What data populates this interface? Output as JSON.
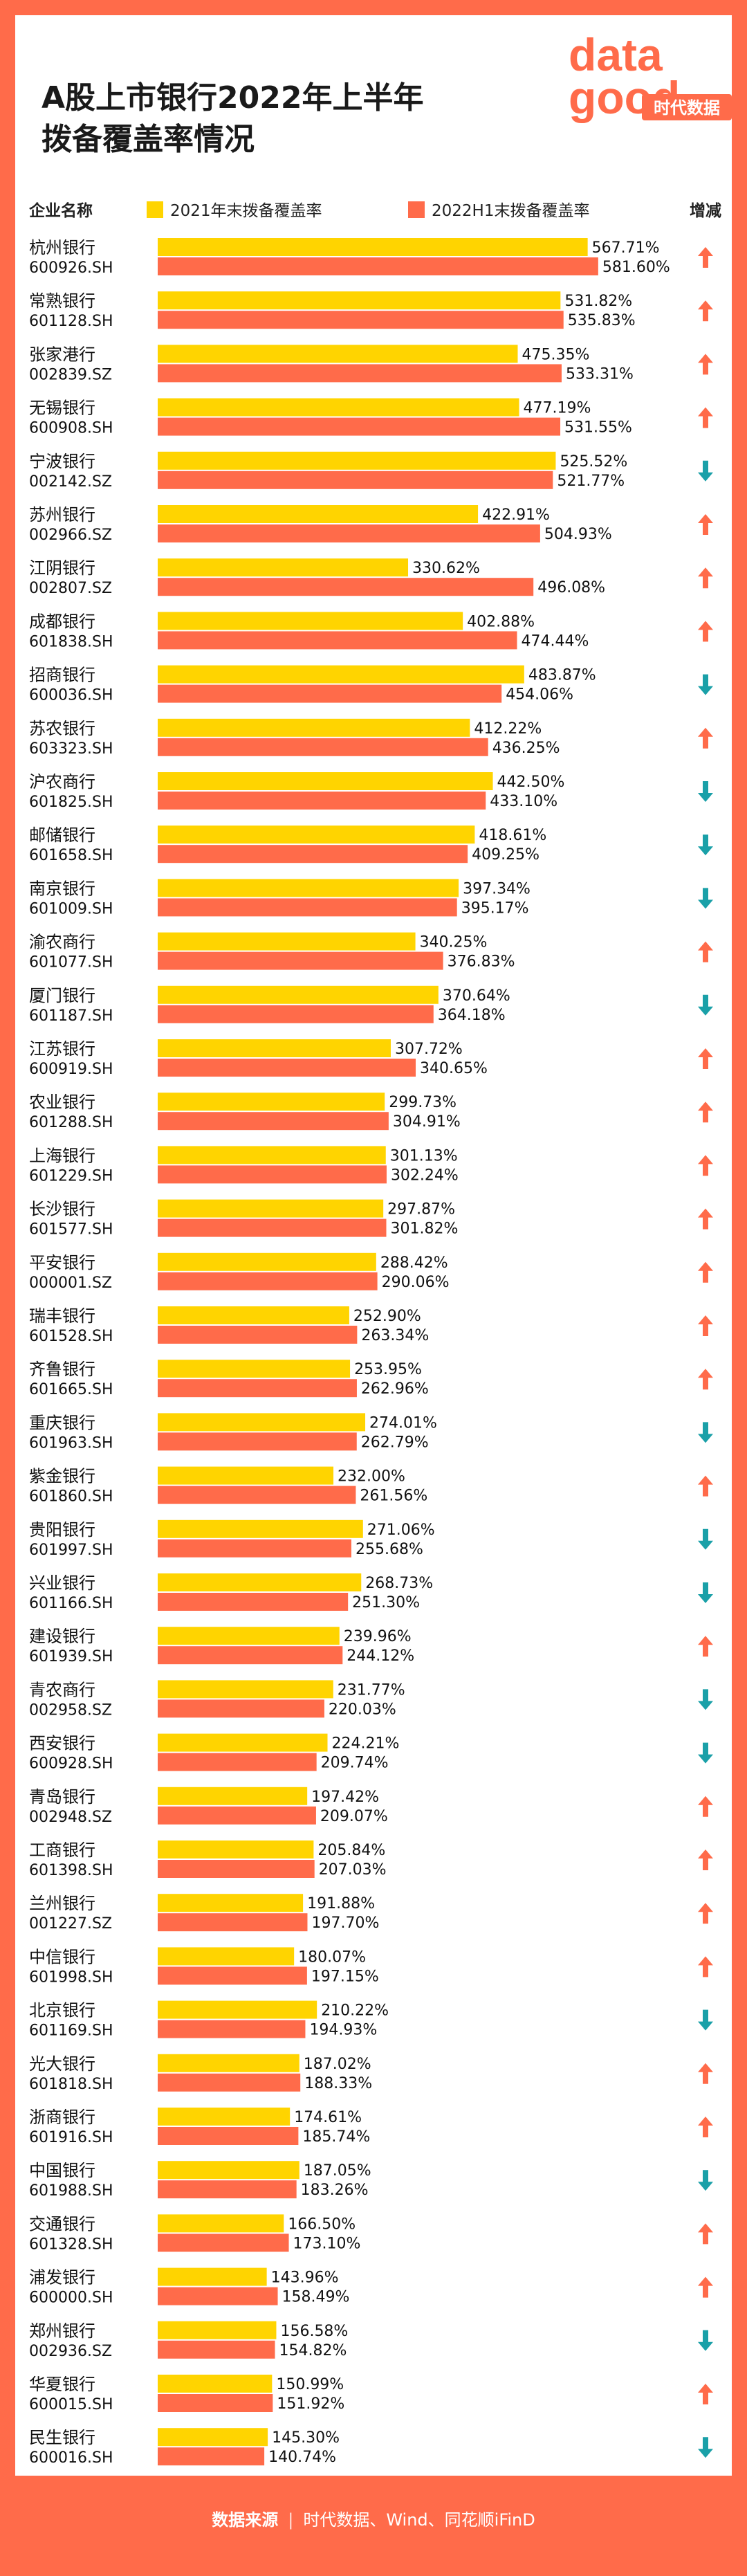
{
  "title": [
    "A股上市银行2022年上半年",
    "拨备覆盖率情况"
  ],
  "logo": {
    "top": "data",
    "bottom": "good",
    "tag": "时代数据"
  },
  "footer": {
    "label": "数据来源",
    "sources": "时代数据、Wind、同花顺iFinD"
  },
  "colors": {
    "y2021": "#ffd400",
    "y2022": "#ff6b4a",
    "up": "#ff6b4a",
    "down": "#1aa0a8",
    "background": "#ff6b4a"
  },
  "chart_data": {
    "type": "bar",
    "orientation": "horizontal",
    "headers": {
      "company": "企业名称",
      "change": "增减"
    },
    "series": [
      {
        "name": "2021年末拨备覆盖率",
        "key": "y2021",
        "color": "#ffd400"
      },
      {
        "name": "2022H1末拨备覆盖率",
        "key": "y2022",
        "color": "#ff6b4a"
      }
    ],
    "value_suffix": "%",
    "xlim": [
      0,
      600
    ],
    "rows": [
      {
        "name": "杭州银行",
        "code": "600926.SH",
        "y2021": 567.71,
        "y2022": 581.6,
        "trend": "up"
      },
      {
        "name": "常熟银行",
        "code": "601128.SH",
        "y2021": 531.82,
        "y2022": 535.83,
        "trend": "up"
      },
      {
        "name": "张家港行",
        "code": "002839.SZ",
        "y2021": 475.35,
        "y2022": 533.31,
        "trend": "up"
      },
      {
        "name": "无锡银行",
        "code": "600908.SH",
        "y2021": 477.19,
        "y2022": 531.55,
        "trend": "up"
      },
      {
        "name": "宁波银行",
        "code": "002142.SZ",
        "y2021": 525.52,
        "y2022": 521.77,
        "trend": "down"
      },
      {
        "name": "苏州银行",
        "code": "002966.SZ",
        "y2021": 422.91,
        "y2022": 504.93,
        "trend": "up"
      },
      {
        "name": "江阴银行",
        "code": "002807.SZ",
        "y2021": 330.62,
        "y2022": 496.08,
        "trend": "up"
      },
      {
        "name": "成都银行",
        "code": "601838.SH",
        "y2021": 402.88,
        "y2022": 474.44,
        "trend": "up"
      },
      {
        "name": "招商银行",
        "code": "600036.SH",
        "y2021": 483.87,
        "y2022": 454.06,
        "trend": "down"
      },
      {
        "name": "苏农银行",
        "code": "603323.SH",
        "y2021": 412.22,
        "y2022": 436.25,
        "trend": "up"
      },
      {
        "name": "沪农商行",
        "code": "601825.SH",
        "y2021": 442.5,
        "y2022": 433.1,
        "trend": "down"
      },
      {
        "name": "邮储银行",
        "code": "601658.SH",
        "y2021": 418.61,
        "y2022": 409.25,
        "trend": "down"
      },
      {
        "name": "南京银行",
        "code": "601009.SH",
        "y2021": 397.34,
        "y2022": 395.17,
        "trend": "down"
      },
      {
        "name": "渝农商行",
        "code": "601077.SH",
        "y2021": 340.25,
        "y2022": 376.83,
        "trend": "up"
      },
      {
        "name": "厦门银行",
        "code": "601187.SH",
        "y2021": 370.64,
        "y2022": 364.18,
        "trend": "down"
      },
      {
        "name": "江苏银行",
        "code": "600919.SH",
        "y2021": 307.72,
        "y2022": 340.65,
        "trend": "up"
      },
      {
        "name": "农业银行",
        "code": "601288.SH",
        "y2021": 299.73,
        "y2022": 304.91,
        "trend": "up"
      },
      {
        "name": "上海银行",
        "code": "601229.SH",
        "y2021": 301.13,
        "y2022": 302.24,
        "trend": "up"
      },
      {
        "name": "长沙银行",
        "code": "601577.SH",
        "y2021": 297.87,
        "y2022": 301.82,
        "trend": "up"
      },
      {
        "name": "平安银行",
        "code": "000001.SZ",
        "y2021": 288.42,
        "y2022": 290.06,
        "trend": "up"
      },
      {
        "name": "瑞丰银行",
        "code": "601528.SH",
        "y2021": 252.9,
        "y2022": 263.34,
        "trend": "up"
      },
      {
        "name": "齐鲁银行",
        "code": "601665.SH",
        "y2021": 253.95,
        "y2022": 262.96,
        "trend": "up"
      },
      {
        "name": "重庆银行",
        "code": "601963.SH",
        "y2021": 274.01,
        "y2022": 262.79,
        "trend": "down"
      },
      {
        "name": "紫金银行",
        "code": "601860.SH",
        "y2021": 232.0,
        "y2022": 261.56,
        "trend": "up"
      },
      {
        "name": "贵阳银行",
        "code": "601997.SH",
        "y2021": 271.06,
        "y2022": 255.68,
        "trend": "down"
      },
      {
        "name": "兴业银行",
        "code": "601166.SH",
        "y2021": 268.73,
        "y2022": 251.3,
        "trend": "down"
      },
      {
        "name": "建设银行",
        "code": "601939.SH",
        "y2021": 239.96,
        "y2022": 244.12,
        "trend": "up"
      },
      {
        "name": "青农商行",
        "code": "002958.SZ",
        "y2021": 231.77,
        "y2022": 220.03,
        "trend": "down"
      },
      {
        "name": "西安银行",
        "code": "600928.SH",
        "y2021": 224.21,
        "y2022": 209.74,
        "trend": "down"
      },
      {
        "name": "青岛银行",
        "code": "002948.SZ",
        "y2021": 197.42,
        "y2022": 209.07,
        "trend": "up"
      },
      {
        "name": "工商银行",
        "code": "601398.SH",
        "y2021": 205.84,
        "y2022": 207.03,
        "trend": "up"
      },
      {
        "name": "兰州银行",
        "code": "001227.SZ",
        "y2021": 191.88,
        "y2022": 197.7,
        "trend": "up"
      },
      {
        "name": "中信银行",
        "code": "601998.SH",
        "y2021": 180.07,
        "y2022": 197.15,
        "trend": "up"
      },
      {
        "name": "北京银行",
        "code": "601169.SH",
        "y2021": 210.22,
        "y2022": 194.93,
        "trend": "down"
      },
      {
        "name": "光大银行",
        "code": "601818.SH",
        "y2021": 187.02,
        "y2022": 188.33,
        "trend": "up"
      },
      {
        "name": "浙商银行",
        "code": "601916.SH",
        "y2021": 174.61,
        "y2022": 185.74,
        "trend": "up"
      },
      {
        "name": "中国银行",
        "code": "601988.SH",
        "y2021": 187.05,
        "y2022": 183.26,
        "trend": "down"
      },
      {
        "name": "交通银行",
        "code": "601328.SH",
        "y2021": 166.5,
        "y2022": 173.1,
        "trend": "up"
      },
      {
        "name": "浦发银行",
        "code": "600000.SH",
        "y2021": 143.96,
        "y2022": 158.49,
        "trend": "up"
      },
      {
        "name": "郑州银行",
        "code": "002936.SZ",
        "y2021": 156.58,
        "y2022": 154.82,
        "trend": "down"
      },
      {
        "name": "华夏银行",
        "code": "600015.SH",
        "y2021": 150.99,
        "y2022": 151.92,
        "trend": "up"
      },
      {
        "name": "民生银行",
        "code": "600016.SH",
        "y2021": 145.3,
        "y2022": 140.74,
        "trend": "down"
      }
    ]
  }
}
